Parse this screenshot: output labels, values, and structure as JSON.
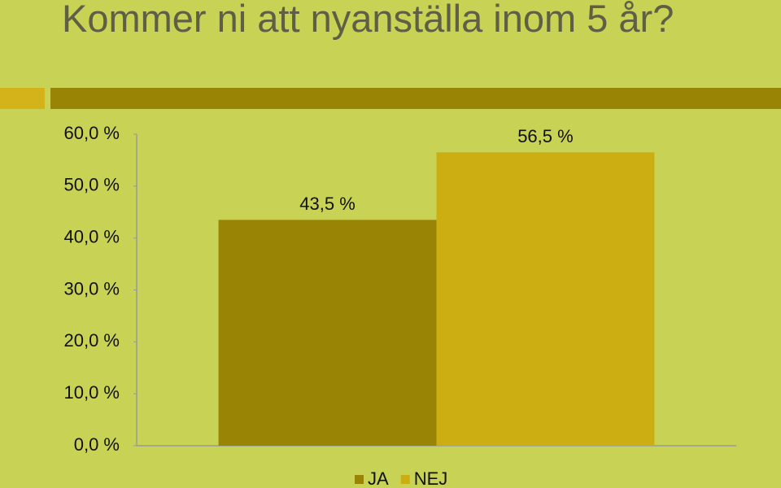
{
  "chart_data": {
    "type": "bar",
    "title": "Kommer ni att nyanställa inom 5 år?",
    "categories": [
      null
    ],
    "series": [
      {
        "name": "JA",
        "color": "#9a8406",
        "values": [
          43.5
        ],
        "value_labels": [
          "43,5 %"
        ]
      },
      {
        "name": "NEJ",
        "color": "#ccae12",
        "values": [
          56.5
        ],
        "value_labels": [
          "56,5 %"
        ]
      }
    ],
    "ylim": [
      0,
      60
    ],
    "yticks": [
      {
        "value": 0,
        "label": "0,0 %"
      },
      {
        "value": 10,
        "label": "10,0 %"
      },
      {
        "value": 20,
        "label": "20,0 %"
      },
      {
        "value": 30,
        "label": "30,0 %"
      },
      {
        "value": 40,
        "label": "40,0 %"
      },
      {
        "value": 50,
        "label": "50,0 %"
      },
      {
        "value": 60,
        "label": "60,0 %"
      }
    ],
    "legend": "bottom"
  }
}
